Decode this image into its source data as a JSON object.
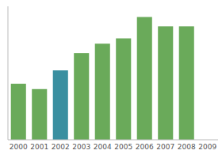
{
  "chart_data": {
    "type": "bar",
    "categories": [
      "2000",
      "2001",
      "2002",
      "2003",
      "2004",
      "2005",
      "2006",
      "2007",
      "2008",
      "2009"
    ],
    "values": [
      42,
      38,
      52,
      65,
      72,
      76,
      92,
      85,
      85,
      0
    ],
    "colors": [
      "#6aaa5a",
      "#6aaa5a",
      "#3a8fa0",
      "#6aaa5a",
      "#6aaa5a",
      "#6aaa5a",
      "#6aaa5a",
      "#6aaa5a",
      "#6aaa5a",
      "#6aaa5a"
    ],
    "ylim": [
      0,
      100
    ],
    "grid": false,
    "tick_labels": "x"
  }
}
